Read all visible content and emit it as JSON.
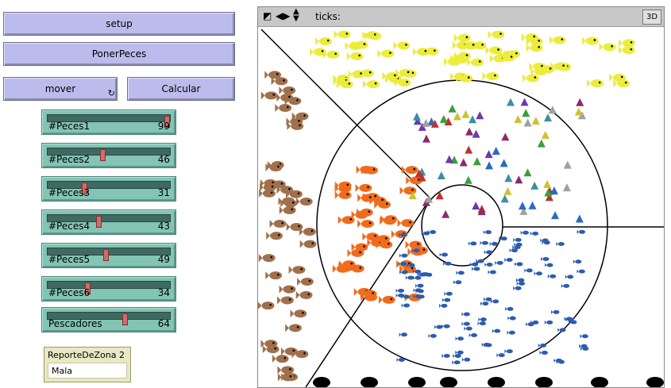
{
  "buttons": {
    "setup": "setup",
    "poner_peces": "PonerPeces",
    "mover": "mover",
    "calcular": "Calcular"
  },
  "sliders": [
    {
      "label": "#Peces1",
      "value": 99,
      "fraction": 0.99
    },
    {
      "label": "#Peces2",
      "value": 46,
      "fraction": 0.46
    },
    {
      "label": "#Peces3",
      "value": 31,
      "fraction": 0.31
    },
    {
      "label": "#Peces4",
      "value": 43,
      "fraction": 0.43
    },
    {
      "label": "#Peces5",
      "value": 49,
      "fraction": 0.49
    },
    {
      "label": "#Peces6",
      "value": 34,
      "fraction": 0.34
    },
    {
      "label": "Pescadores",
      "value": 64,
      "fraction": 0.64
    }
  ],
  "monitor": {
    "label": "ReporteDeZona 2",
    "value": "Mala"
  },
  "view": {
    "ticks_label": "ticks:",
    "btn_3d": "3D"
  },
  "colors": {
    "button": "#bcbcec",
    "slider": "#83c4b4",
    "monitor": "#e8e8c4",
    "fish_yellow": "#ecec3c",
    "fish_brown": "#a0704c",
    "fish_orange": "#f06c1c",
    "fish_blue": "#2c5cb0",
    "boats": "#000000"
  }
}
